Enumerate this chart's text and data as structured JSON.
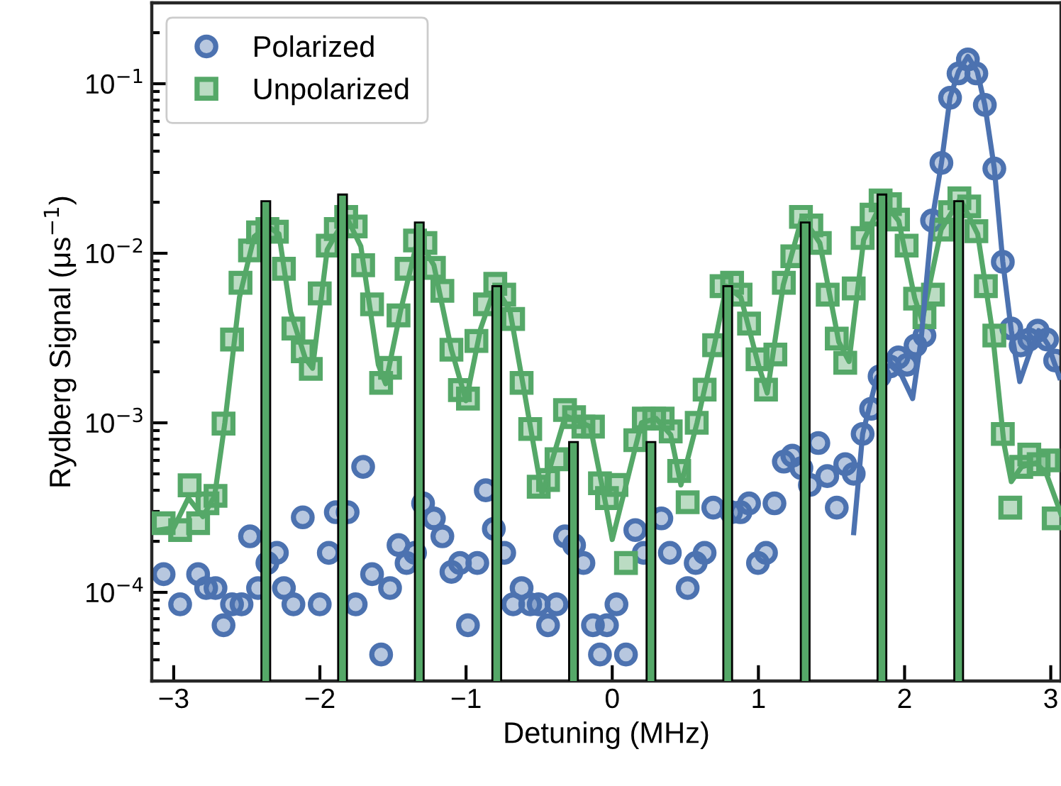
{
  "chart_data": {
    "type": "scatter",
    "xlabel": "Detuning (MHz)",
    "ylabel": "Rydberg Signal (μs$^{−1}$)",
    "log": "y",
    "xlim": [
      -3.15,
      3.07
    ],
    "ylim": [
      3e-05,
      0.3
    ],
    "xticks": [
      {
        "value": -3,
        "label": "−3"
      },
      {
        "value": -2,
        "label": "−2"
      },
      {
        "value": -1,
        "label": "−1"
      },
      0,
      1,
      2,
      3
    ],
    "yticks": [
      {
        "value": 0.0001,
        "label": "10$^{−4}$"
      },
      {
        "value": 0.001,
        "label": "10$^{−3}$"
      },
      {
        "value": 0.01,
        "label": "10$^{−2}$"
      },
      {
        "value": 0.1,
        "label": "10$^{−1}$"
      }
    ],
    "grid": false,
    "legend": "top left",
    "series": [
      {
        "name": "Polarized",
        "marker": "circle",
        "color": "#4c72b0",
        "x": [
          -3.069,
          -2.956,
          -2.833,
          -2.778,
          -2.714,
          -2.659,
          -2.601,
          -2.536,
          -2.478,
          -2.423,
          -2.359,
          -2.294,
          -2.246,
          -2.181,
          -2.117,
          -2.001,
          -1.939,
          -1.891,
          -1.81,
          -1.755,
          -1.704,
          -1.643,
          -1.581,
          -1.52,
          -1.462,
          -1.407,
          -1.349,
          -1.294,
          -1.22,
          -1.162,
          -1.1,
          -1.042,
          -0.987,
          -0.923,
          -0.865,
          -0.81,
          -0.739,
          -0.678,
          -0.62,
          -0.561,
          -0.503,
          -0.439,
          -0.381,
          -0.323,
          -0.261,
          -0.197,
          -0.132,
          -0.084,
          -0.036,
          0.029,
          0.094,
          0.158,
          0.216,
          0.336,
          0.394,
          0.516,
          0.571,
          0.632,
          0.691,
          0.813,
          0.878,
          0.936,
          0.997,
          1.052,
          1.11,
          1.174,
          1.232,
          1.294,
          1.352,
          1.41,
          1.471,
          1.536,
          1.594,
          1.652,
          1.713,
          1.771,
          1.829,
          1.9,
          1.958,
          2.017,
          2.075,
          2.136,
          2.188,
          2.252,
          2.311,
          2.369,
          2.433,
          2.491,
          2.549,
          2.614,
          2.672,
          2.73,
          2.794,
          2.853,
          2.911,
          2.975,
          3.03
        ],
        "values": [
          0.000128,
          8.5e-05,
          0.000128,
          0.000106,
          0.000106,
          6.4e-05,
          8.5e-05,
          8.5e-05,
          0.000214,
          0.000106,
          0.000149,
          0.000171,
          0.000106,
          8.5e-05,
          0.000277,
          8.5e-05,
          0.000171,
          0.000297,
          0.000297,
          8.5e-05,
          0.00055,
          0.000128,
          4.3e-05,
          0.000106,
          0.00019,
          0.000149,
          0.000171,
          0.000335,
          0.000273,
          0.000214,
          0.000132,
          0.000149,
          6.4e-05,
          0.000149,
          0.0004,
          0.000237,
          0.000171,
          8.5e-05,
          0.000106,
          8.5e-05,
          8.5e-05,
          6.4e-05,
          8.5e-05,
          0.000214,
          0.00019,
          0.000149,
          6.4e-05,
          4.3e-05,
          6.4e-05,
          8.5e-05,
          4.3e-05,
          0.000233,
          0.000171,
          0.000273,
          0.000171,
          0.000106,
          0.000149,
          0.000171,
          0.000316,
          0.000297,
          0.000297,
          0.000335,
          0.000149,
          0.000171,
          0.000335,
          0.00059,
          0.00064,
          0.00054,
          0.00043,
          0.00076,
          0.000485,
          0.000316,
          0.00057,
          0.0005,
          0.00086,
          0.00121,
          0.00188,
          0.00215,
          0.00243,
          0.0022,
          0.00286,
          0.00327,
          0.0156,
          0.0341,
          0.0826,
          0.115,
          0.139,
          0.115,
          0.075,
          0.0316,
          0.0089,
          0.0036,
          0.00286,
          0.0031,
          0.0035,
          0.0031,
          0.00233
        ]
      },
      {
        "name": "Unpolarized",
        "marker": "square",
        "color": "#55a868",
        "x": [
          -3.069,
          -2.956,
          -2.891,
          -2.833,
          -2.769,
          -2.714,
          -2.659,
          -2.601,
          -2.543,
          -2.478,
          -2.423,
          -2.359,
          -2.294,
          -2.246,
          -2.181,
          -2.117,
          -2.062,
          -2.001,
          -1.946,
          -1.891,
          -1.82,
          -1.755,
          -1.704,
          -1.643,
          -1.581,
          -1.52,
          -1.462,
          -1.407,
          -1.349,
          -1.278,
          -1.22,
          -1.162,
          -1.1,
          -1.042,
          -0.987,
          -0.929,
          -0.871,
          -0.8,
          -0.739,
          -0.678,
          -0.62,
          -0.561,
          -0.503,
          -0.439,
          -0.381,
          -0.323,
          -0.261,
          -0.197,
          -0.132,
          -0.084,
          -0.036,
          0.029,
          0.094,
          0.158,
          0.216,
          0.287,
          0.345,
          0.4,
          0.458,
          0.516,
          0.578,
          0.632,
          0.697,
          0.748,
          0.82,
          0.878,
          0.936,
          0.994,
          1.052,
          1.116,
          1.174,
          1.232,
          1.291,
          1.362,
          1.42,
          1.474,
          1.536,
          1.594,
          1.652,
          1.713,
          1.774,
          1.836,
          1.9,
          1.955,
          2.014,
          2.072,
          2.136,
          2.194,
          2.256,
          2.311,
          2.375,
          2.442,
          2.491,
          2.556,
          2.614,
          2.672,
          2.723,
          2.798,
          2.853,
          2.917,
          2.982,
          3.02
        ],
        "values": [
          0.000256,
          0.000233,
          0.000428,
          0.000256,
          0.000335,
          0.000371,
          0.00099,
          0.0031,
          0.0067,
          0.0104,
          0.0133,
          0.0139,
          0.0134,
          0.0081,
          0.0036,
          0.00264,
          0.00208,
          0.0058,
          0.0111,
          0.0139,
          0.0164,
          0.0144,
          0.0085,
          0.005,
          0.00172,
          0.00211,
          0.0043,
          0.0081,
          0.0119,
          0.0115,
          0.0082,
          0.006,
          0.0027,
          0.00156,
          0.00139,
          0.00304,
          0.005,
          0.0066,
          0.0057,
          0.0041,
          0.00172,
          0.00092,
          0.00042,
          0.00046,
          0.00061,
          0.00119,
          0.00108,
          0.00095,
          0.00095,
          0.00044,
          0.00036,
          0.00043,
          0.000149,
          0.00079,
          0.00106,
          0.00106,
          0.00106,
          0.00089,
          0.00052,
          0.00034,
          0.001,
          0.00157,
          0.00287,
          0.0064,
          0.0067,
          0.0057,
          0.00385,
          0.00237,
          0.00157,
          0.00253,
          0.0067,
          0.0096,
          0.0164,
          0.0146,
          0.0115,
          0.0057,
          0.00314,
          0.00226,
          0.0062,
          0.0123,
          0.0169,
          0.0205,
          0.0195,
          0.0158,
          0.0111,
          0.0054,
          0.0042,
          0.0057,
          0.0138,
          0.0175,
          0.0211,
          0.0189,
          0.0135,
          0.0064,
          0.00327,
          0.00086,
          0.000316,
          0.00055,
          0.00065,
          0.00057,
          0.0006,
          0.000273
        ]
      },
      {
        "type": "line",
        "marker": "none",
        "line_style": "solid",
        "color": "#55a868",
        "x": [
          -3.15,
          -3.0,
          -2.9,
          -2.8,
          -2.72,
          -2.65,
          -2.55,
          -2.45,
          -2.36,
          -2.28,
          -2.2,
          -2.1,
          -2.05,
          -1.95,
          -1.82,
          -1.72,
          -1.6,
          -1.55,
          -1.45,
          -1.33,
          -1.22,
          -1.1,
          -1.0,
          -0.9,
          -0.8,
          -0.7,
          -0.6,
          -0.48,
          -0.32,
          -0.15,
          -0.05,
          0.0,
          0.1,
          0.2,
          0.3,
          0.4,
          0.47,
          0.58,
          0.7,
          0.78,
          0.88,
          1.0,
          1.06,
          1.17,
          1.3,
          1.42,
          1.55,
          1.62,
          1.72,
          1.85,
          1.96,
          2.07,
          2.12,
          2.25,
          2.38,
          2.5,
          2.6,
          2.68,
          2.73,
          2.8,
          2.9,
          2.97,
          3.07
        ],
        "values": [
          0.00023,
          0.00024,
          0.00036,
          0.00028,
          0.00037,
          0.001,
          0.0055,
          0.0125,
          0.0145,
          0.013,
          0.0045,
          0.0024,
          0.0021,
          0.0105,
          0.0165,
          0.011,
          0.0022,
          0.0017,
          0.0045,
          0.0122,
          0.0085,
          0.0027,
          0.00135,
          0.0036,
          0.0064,
          0.0046,
          0.0015,
          0.00038,
          0.0011,
          0.00095,
          0.00035,
          0.000205,
          0.00045,
          0.001,
          0.00106,
          0.00085,
          0.00043,
          0.001,
          0.0029,
          0.0064,
          0.0055,
          0.0022,
          0.0015,
          0.0065,
          0.0165,
          0.0115,
          0.003,
          0.0023,
          0.012,
          0.0205,
          0.0155,
          0.0054,
          0.004,
          0.0138,
          0.021,
          0.013,
          0.0035,
          0.00075,
          0.00045,
          0.00055,
          0.00058,
          0.0005,
          0.00029
        ]
      },
      {
        "type": "line",
        "marker": "none",
        "line_style": "solid",
        "color": "#4c72b0",
        "x": [
          1.652,
          1.713,
          1.81,
          1.9,
          1.98,
          2.055,
          2.113,
          2.188,
          2.252,
          2.311,
          2.369,
          2.433,
          2.497,
          2.549,
          2.614,
          2.672,
          2.73,
          2.788,
          2.853,
          2.917,
          2.98,
          3.06
        ],
        "values": [
          0.000225,
          0.00086,
          0.00185,
          0.0022,
          0.0019,
          0.00139,
          0.0031,
          0.0156,
          0.034,
          0.083,
          0.118,
          0.145,
          0.118,
          0.075,
          0.0316,
          0.0089,
          0.0035,
          0.00175,
          0.00255,
          0.0035,
          0.0029,
          0.00185
        ]
      },
      {
        "type": "bar",
        "color": "#55a868",
        "x": [
          -2.37,
          -1.845,
          -1.32,
          -0.79,
          -0.265,
          0.265,
          0.79,
          1.32,
          1.845,
          2.37
        ],
        "values": [
          0.0203,
          0.0222,
          0.0152,
          0.0064,
          0.00077,
          0.00077,
          0.0064,
          0.0152,
          0.0222,
          0.0203
        ]
      }
    ]
  }
}
